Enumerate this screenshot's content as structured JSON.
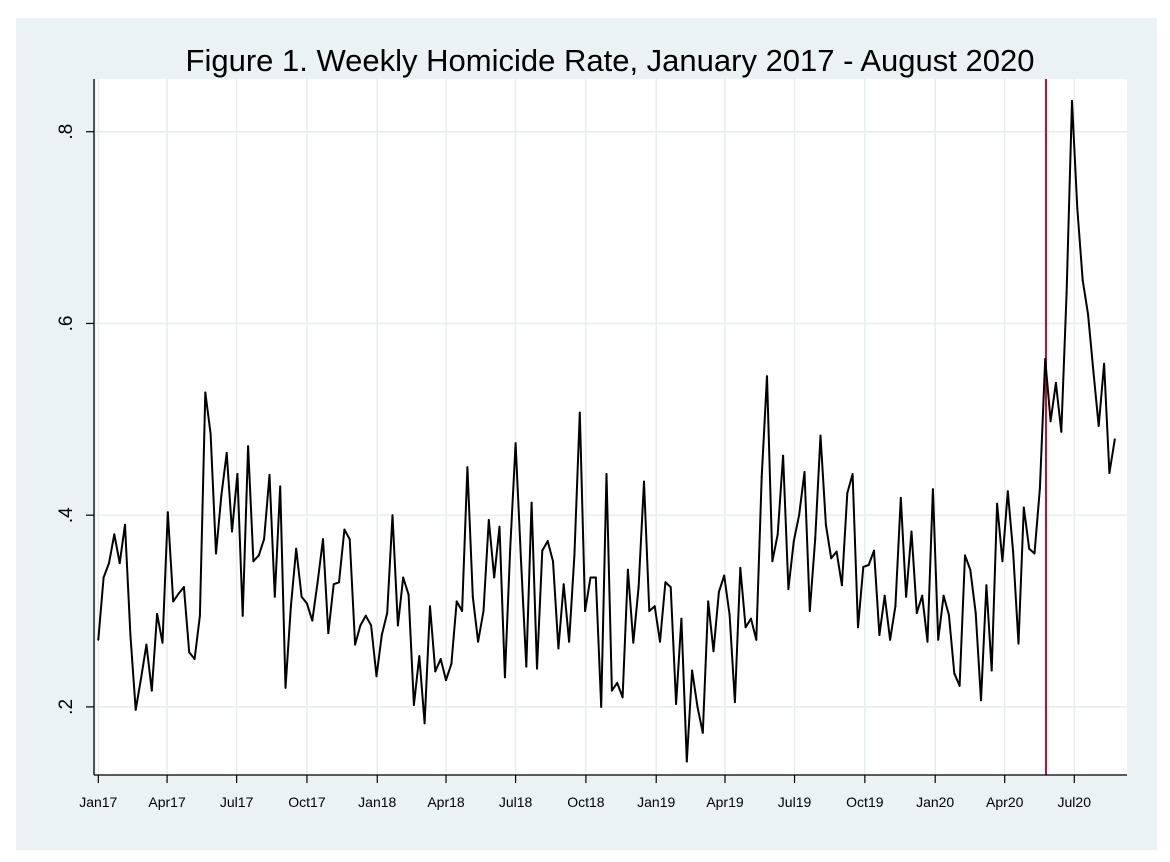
{
  "chart_data": {
    "type": "line",
    "title": "Figure 1. Weekly Homicide Rate, January 2017 - August 2020",
    "xlabel": "",
    "ylabel": "",
    "x_start": "2017-01-01",
    "x_interval": "weekly",
    "xlim": [
      "2016-12-29",
      "2020-09-08"
    ],
    "ylim": [
      0.13,
      0.855
    ],
    "grid": true,
    "yticks": [
      {
        "value": 0.2,
        "label": ".2"
      },
      {
        "value": 0.4,
        "label": ".4"
      },
      {
        "value": 0.6,
        "label": ".6"
      },
      {
        "value": 0.8,
        "label": ".8"
      }
    ],
    "xticks": [
      {
        "date": "2017-01-01",
        "label": "Jan17"
      },
      {
        "date": "2017-04-01",
        "label": "Apr17"
      },
      {
        "date": "2017-07-01",
        "label": "Jul17"
      },
      {
        "date": "2017-10-01",
        "label": "Oct17"
      },
      {
        "date": "2018-01-01",
        "label": "Jan18"
      },
      {
        "date": "2018-04-01",
        "label": "Apr18"
      },
      {
        "date": "2018-07-01",
        "label": "Jul18"
      },
      {
        "date": "2018-10-01",
        "label": "Oct18"
      },
      {
        "date": "2019-01-01",
        "label": "Jan19"
      },
      {
        "date": "2019-04-01",
        "label": "Apr19"
      },
      {
        "date": "2019-07-01",
        "label": "Jul19"
      },
      {
        "date": "2019-10-01",
        "label": "Oct19"
      },
      {
        "date": "2020-01-01",
        "label": "Jan20"
      },
      {
        "date": "2020-04-01",
        "label": "Apr20"
      },
      {
        "date": "2020-07-01",
        "label": "Jul20"
      }
    ],
    "reference_line": {
      "date": "2020-05-25",
      "color": "#b3133a"
    },
    "series": [
      {
        "color": "#000000",
        "values": [
          0.27,
          0.335,
          0.35,
          0.38,
          0.35,
          0.39,
          0.275,
          0.197,
          0.23,
          0.265,
          0.217,
          0.297,
          0.267,
          0.403,
          0.31,
          0.318,
          0.325,
          0.257,
          0.25,
          0.295,
          0.528,
          0.485,
          0.36,
          0.42,
          0.465,
          0.383,
          0.443,
          0.295,
          0.472,
          0.352,
          0.358,
          0.375,
          0.442,
          0.315,
          0.43,
          0.22,
          0.305,
          0.365,
          0.315,
          0.308,
          0.29,
          0.33,
          0.375,
          0.277,
          0.328,
          0.33,
          0.385,
          0.375,
          0.265,
          0.285,
          0.295,
          0.285,
          0.232,
          0.275,
          0.298,
          0.4,
          0.285,
          0.335,
          0.317,
          0.202,
          0.253,
          0.183,
          0.305,
          0.237,
          0.25,
          0.228,
          0.245,
          0.31,
          0.3,
          0.45,
          0.315,
          0.268,
          0.3,
          0.395,
          0.335,
          0.388,
          0.231,
          0.365,
          0.475,
          0.355,
          0.242,
          0.413,
          0.24,
          0.363,
          0.373,
          0.352,
          0.261,
          0.328,
          0.268,
          0.358,
          0.507,
          0.3,
          0.335,
          0.335,
          0.2,
          0.443,
          0.217,
          0.225,
          0.21,
          0.343,
          0.267,
          0.325,
          0.435,
          0.3,
          0.305,
          0.268,
          0.33,
          0.325,
          0.203,
          0.292,
          0.143,
          0.238,
          0.2,
          0.173,
          0.31,
          0.258,
          0.32,
          0.337,
          0.296,
          0.205,
          0.345,
          0.283,
          0.292,
          0.27,
          0.44,
          0.545,
          0.352,
          0.38,
          0.462,
          0.323,
          0.373,
          0.4,
          0.445,
          0.3,
          0.375,
          0.483,
          0.39,
          0.355,
          0.362,
          0.327,
          0.423,
          0.443,
          0.283,
          0.346,
          0.348,
          0.363,
          0.275,
          0.316,
          0.27,
          0.305,
          0.418,
          0.315,
          0.383,
          0.298,
          0.316,
          0.268,
          0.427,
          0.27,
          0.316,
          0.296,
          0.235,
          0.222,
          0.358,
          0.343,
          0.298,
          0.207,
          0.327,
          0.238,
          0.412,
          0.352,
          0.425,
          0.362,
          0.266,
          0.408,
          0.365,
          0.36,
          0.428,
          0.563,
          0.498,
          0.538,
          0.487,
          0.632,
          0.832,
          0.72,
          0.645,
          0.61,
          0.55,
          0.493,
          0.558,
          0.444,
          0.479
        ]
      }
    ]
  }
}
